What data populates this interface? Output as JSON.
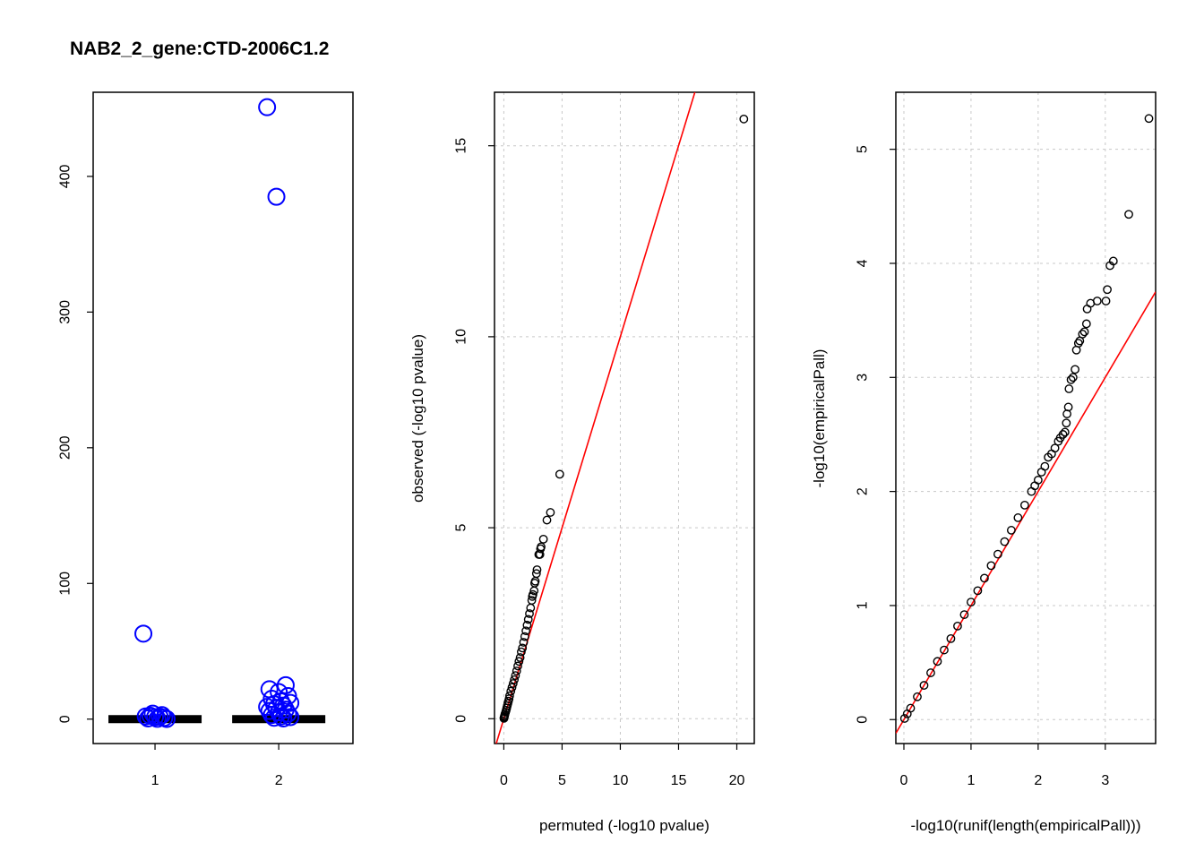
{
  "page_title": "NAB2_2_gene:CTD-2006C1.2",
  "colors": {
    "box_points": "#0000ff",
    "reference_line": "#ff0000",
    "points": "#000000",
    "grid": "#c8c8c8"
  },
  "chart_data": [
    {
      "type": "box",
      "title": "NAB2_2_gene:CTD-2006C1.2",
      "xlabel": "",
      "ylabel": "",
      "categories": [
        "1",
        "2"
      ],
      "xlim": [
        0.5,
        2.6
      ],
      "ylim": [
        -18,
        462
      ],
      "y_ticks": [
        0,
        100,
        200,
        300,
        400
      ],
      "box_medians": [
        0,
        0
      ],
      "outliers": [
        {
          "group": 1,
          "values": [
            63,
            4,
            3,
            2,
            1.5,
            1,
            0.5,
            0.2,
            0.1,
            2.5,
            1.8
          ]
        },
        {
          "group": 2,
          "values": [
            451,
            385,
            25,
            22,
            20,
            17,
            15,
            13,
            12,
            11,
            10,
            9,
            8,
            7,
            6,
            5,
            4,
            3,
            2,
            1.5,
            1,
            0.5
          ]
        }
      ]
    },
    {
      "type": "scatter",
      "xlabel": "permuted (-log10 pvalue)",
      "ylabel": "observed (-log10 pvalue)",
      "xlim": [
        -0.8,
        21.5
      ],
      "ylim": [
        -0.65,
        16.4
      ],
      "x_ticks": [
        0,
        5,
        10,
        15,
        20
      ],
      "y_ticks": [
        0,
        5,
        10,
        15
      ],
      "grid": true,
      "reference_line": {
        "slope": 1,
        "intercept": 0
      },
      "points": [
        [
          20.6,
          15.7
        ],
        [
          4.8,
          6.4
        ],
        [
          4.0,
          5.4
        ],
        [
          3.7,
          5.2
        ],
        [
          3.4,
          4.7
        ],
        [
          3.2,
          4.5
        ],
        [
          3.15,
          4.45
        ],
        [
          3.1,
          4.3
        ],
        [
          3.0,
          4.3
        ],
        [
          2.85,
          3.9
        ],
        [
          2.8,
          3.8
        ],
        [
          2.7,
          3.6
        ],
        [
          2.65,
          3.55
        ],
        [
          2.6,
          3.35
        ],
        [
          2.5,
          3.25
        ],
        [
          2.45,
          3.2
        ],
        [
          2.4,
          3.1
        ],
        [
          2.3,
          2.9
        ],
        [
          2.2,
          2.75
        ],
        [
          2.1,
          2.6
        ],
        [
          2.0,
          2.45
        ],
        [
          1.9,
          2.3
        ],
        [
          1.8,
          2.15
        ],
        [
          1.7,
          2.0
        ],
        [
          1.6,
          1.85
        ],
        [
          1.5,
          1.75
        ],
        [
          1.4,
          1.6
        ],
        [
          1.3,
          1.5
        ],
        [
          1.2,
          1.38
        ],
        [
          1.1,
          1.25
        ],
        [
          1.0,
          1.13
        ],
        [
          0.9,
          1.02
        ],
        [
          0.8,
          0.92
        ],
        [
          0.7,
          0.82
        ],
        [
          0.6,
          0.72
        ],
        [
          0.5,
          0.6
        ],
        [
          0.45,
          0.52
        ],
        [
          0.4,
          0.46
        ],
        [
          0.35,
          0.4
        ],
        [
          0.3,
          0.34
        ],
        [
          0.25,
          0.28
        ],
        [
          0.2,
          0.22
        ],
        [
          0.15,
          0.17
        ],
        [
          0.1,
          0.12
        ],
        [
          0.07,
          0.08
        ],
        [
          0.04,
          0.05
        ],
        [
          0.02,
          0.03
        ],
        [
          0.01,
          0.01
        ]
      ]
    },
    {
      "type": "scatter",
      "xlabel": "-log10(runif(length(empiricalPall)))",
      "ylabel": "-log10(empiricalPall)",
      "xlim": [
        -0.12,
        3.75
      ],
      "ylim": [
        -0.21,
        5.5
      ],
      "x_ticks": [
        0,
        1,
        2,
        3
      ],
      "y_ticks": [
        0,
        1,
        2,
        3,
        4,
        5
      ],
      "grid": true,
      "reference_line": {
        "slope": 1,
        "intercept": 0
      },
      "points": [
        [
          3.65,
          5.27
        ],
        [
          3.35,
          4.43
        ],
        [
          3.12,
          4.02
        ],
        [
          3.07,
          3.98
        ],
        [
          3.03,
          3.77
        ],
        [
          3.01,
          3.67
        ],
        [
          2.88,
          3.67
        ],
        [
          2.78,
          3.65
        ],
        [
          2.73,
          3.6
        ],
        [
          2.72,
          3.47
        ],
        [
          2.69,
          3.4
        ],
        [
          2.66,
          3.38
        ],
        [
          2.62,
          3.32
        ],
        [
          2.6,
          3.3
        ],
        [
          2.57,
          3.24
        ],
        [
          2.55,
          3.07
        ],
        [
          2.52,
          3.0
        ],
        [
          2.49,
          2.98
        ],
        [
          2.46,
          2.9
        ],
        [
          2.45,
          2.74
        ],
        [
          2.43,
          2.68
        ],
        [
          2.42,
          2.6
        ],
        [
          2.4,
          2.52
        ],
        [
          2.37,
          2.5
        ],
        [
          2.33,
          2.47
        ],
        [
          2.3,
          2.44
        ],
        [
          2.25,
          2.38
        ],
        [
          2.2,
          2.33
        ],
        [
          2.15,
          2.3
        ],
        [
          2.1,
          2.22
        ],
        [
          2.05,
          2.17
        ],
        [
          2.0,
          2.1
        ],
        [
          1.95,
          2.05
        ],
        [
          1.9,
          2.0
        ],
        [
          1.8,
          1.88
        ],
        [
          1.7,
          1.77
        ],
        [
          1.6,
          1.66
        ],
        [
          1.5,
          1.56
        ],
        [
          1.4,
          1.45
        ],
        [
          1.3,
          1.35
        ],
        [
          1.2,
          1.24
        ],
        [
          1.1,
          1.13
        ],
        [
          1.0,
          1.03
        ],
        [
          0.9,
          0.92
        ],
        [
          0.8,
          0.82
        ],
        [
          0.7,
          0.71
        ],
        [
          0.6,
          0.61
        ],
        [
          0.5,
          0.51
        ],
        [
          0.4,
          0.41
        ],
        [
          0.3,
          0.3
        ],
        [
          0.2,
          0.2
        ],
        [
          0.1,
          0.1
        ],
        [
          0.05,
          0.05
        ],
        [
          0.01,
          0.01
        ]
      ]
    }
  ]
}
